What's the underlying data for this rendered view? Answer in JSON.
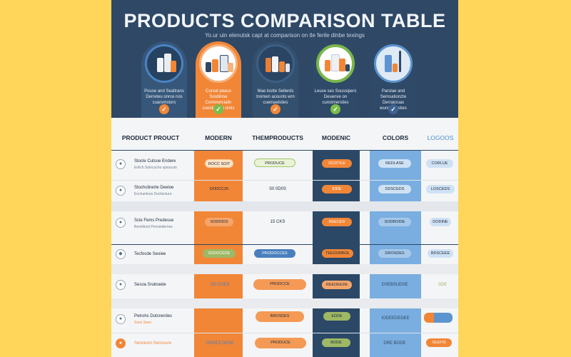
{
  "title": "PRODUCTS COMPARISON TABLE",
  "subtitle": "Yo.ur uin elenutsk capt at comparison on tle ferile dinbe texings",
  "cards": [
    {
      "text": "Pouse and Sealtrans Derreteu onrce nos cuarsmstors",
      "check_icon": "check-icon",
      "accent": "#f18637"
    },
    {
      "text": "Cursot peaus Sostlinne Commercialin cuesties on omls",
      "check_icon": "check-icon",
      "accent": "#7bbd4a"
    },
    {
      "text": "Mae lostte Sellerds tromwn acounts wrn cuemaelsties",
      "check_icon": "check-icon",
      "accent": "#f18637"
    },
    {
      "text": "Leuse ses Soussipers Deuenve on cunstmersties",
      "check_icon": "check-icon",
      "accent": "#7bbd4a"
    },
    {
      "text": "Parstae and Semsationzte Derraiciuas wunsoaelsties",
      "check_icon": "check-icon",
      "accent": "#3e6391"
    }
  ],
  "headers": [
    "PRODUCT PROUCT",
    "MODERN",
    "THEMPRODUCTS",
    "MODENIC",
    "COLORS",
    "LOGOOS"
  ],
  "rows": [
    {
      "name": "Stocle Cutsoe Endere",
      "sub": "Enlich Solocucho spiracuts",
      "c1": "ROCC SOIT",
      "c2": "PRODUCE",
      "c3": "OCDTILE",
      "c4": "REDLASE",
      "c5": "CORLUE"
    },
    {
      "name": "Stochclinerte Deeloe",
      "sub": "Enchanlnes Docliecture",
      "c1": "DODCC25",
      "c2": "S0 0D0S",
      "c3": "IDDE",
      "c4": "DDSCEDS",
      "c5": "LOSCEDS"
    },
    {
      "name": "Scle Fems Predesse",
      "sub": "Bemtlinsd Pensindernes",
      "c1": "SODDIDS",
      "c2": "15 CKS",
      "c3": "REECED",
      "c4": "SODBOIDE",
      "c5": "DODINE"
    },
    {
      "name": "Tecfocde Seoiee",
      "sub": "",
      "c1": "SDDOCEDE",
      "c2": "PRODOCCES",
      "c3": "TEEDORBOL",
      "c4": "DROSDES",
      "c5": "BDSCEEE"
    },
    {
      "name": "Sesoa Sruboede",
      "sub": "",
      "c1": "SO DSES",
      "c2": "PRODCCE",
      "c3": "REEDEEDE",
      "c4": "DSEBSUDSE",
      "c5": "SDE"
    },
    {
      "name": "Petrohs Dutsnerdes",
      "sub": "Ssos Sees",
      "c1": "SO0 CDS",
      "c2": "BROSDES",
      "c3": "EDDE",
      "c4": "IODEEDEDEE",
      "c5": ""
    },
    {
      "name": "Senvesm Senssure",
      "sub": "",
      "c1": "OSRES DDSE",
      "c2": "PRODUCE",
      "c3": "BODE",
      "c4": "DRE BODE",
      "c5": "SEEFIS"
    }
  ]
}
